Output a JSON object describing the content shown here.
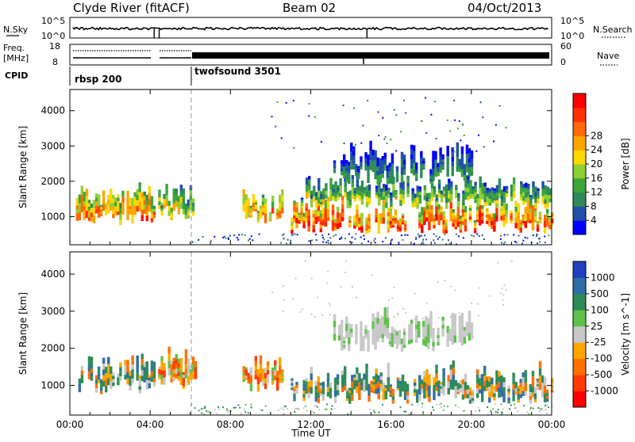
{
  "header": {
    "station": "Clyde River (fitACF)",
    "beam": "Beam 02",
    "date": "04/Oct/2013"
  },
  "strips": {
    "nsky_label": "N.Sky",
    "nsky_ticks": [
      "10^5",
      "10^0"
    ],
    "nsearch_label": "N.Search",
    "nsearch_ticks": [
      "10^5",
      "10^0"
    ],
    "freq_label_1": "Freq.",
    "freq_label_2": "[MHz]",
    "freq_ticks": [
      "18",
      "8"
    ],
    "nave_label": "Nave",
    "nave_ticks": [
      "60",
      "0"
    ],
    "cpid_label": "CPID",
    "cpid_segments": [
      {
        "name": "rbsp 200",
        "start_hour": 0
      },
      {
        "name": "twofsound 3501",
        "start_hour": 6
      }
    ]
  },
  "chart_data": [
    {
      "type": "heatmap",
      "title": "",
      "xlabel": "Time UT",
      "ylabel": "Slant Range [km]",
      "x_range_hours": [
        0,
        24
      ],
      "x_tick_labels": [
        "00:00",
        "04:00",
        "08:00",
        "12:00",
        "16:00",
        "20:00",
        "00:00"
      ],
      "y_range_km": [
        200,
        4600
      ],
      "y_tick_labels": [
        "1000",
        "2000",
        "3000",
        "4000"
      ],
      "colorbar": {
        "label": "Power [dB]",
        "ticks": [
          "4",
          "8",
          "12",
          "16",
          "20",
          "24",
          "28"
        ],
        "colors": [
          "#0000ff",
          "#1f4fa8",
          "#2e8b57",
          "#3aa63a",
          "#8ecf35",
          "#ffd700",
          "#ffa500",
          "#ff6a00",
          "#ff3000",
          "#ff0000"
        ]
      },
      "echo_regions": [
        {
          "t0": 0.3,
          "t1": 4.2,
          "r0": 750,
          "r1": 1800,
          "level": 0.85
        },
        {
          "t0": 4.4,
          "t1": 6.3,
          "r0": 900,
          "r1": 1900,
          "level": 0.65
        },
        {
          "t0": 8.6,
          "t1": 10.6,
          "r0": 800,
          "r1": 1700,
          "level": 0.8
        },
        {
          "t0": 11.0,
          "t1": 24.0,
          "r0": 500,
          "r1": 1500,
          "level": 0.95
        },
        {
          "t0": 11.5,
          "t1": 24.0,
          "r0": 1200,
          "r1": 2100,
          "level": 0.55
        },
        {
          "t0": 13.0,
          "t1": 20.0,
          "r0": 1900,
          "r1": 3000,
          "level": 0.35
        }
      ]
    },
    {
      "type": "heatmap",
      "title": "",
      "xlabel": "Time UT",
      "ylabel": "Slant Range [km]",
      "x_range_hours": [
        0,
        24
      ],
      "x_tick_labels": [
        "00:00",
        "04:00",
        "08:00",
        "12:00",
        "16:00",
        "20:00",
        "00:00"
      ],
      "y_range_km": [
        200,
        4600
      ],
      "y_tick_labels": [
        "1000",
        "2000",
        "3000",
        "4000"
      ],
      "colorbar": {
        "label": "Velocity [m s^-1]",
        "ticks": [
          "1000",
          "500",
          "100",
          "25",
          "-25",
          "-100",
          "-500",
          "-1000"
        ],
        "colors": [
          "#1f3fbf",
          "#2e6ea8",
          "#2e8b57",
          "#5ec24a",
          "#c8c8c8",
          "#ffa500",
          "#ff7000",
          "#ff3a00",
          "#ff0000"
        ]
      },
      "echo_regions": [
        {
          "t0": 0.3,
          "t1": 4.2,
          "r0": 750,
          "r1": 1800,
          "velocity": "mixed"
        },
        {
          "t0": 4.4,
          "t1": 6.3,
          "r0": 900,
          "r1": 1900,
          "velocity": "negative"
        },
        {
          "t0": 8.6,
          "t1": 10.6,
          "r0": 800,
          "r1": 1700,
          "velocity": "negative"
        },
        {
          "t0": 11.0,
          "t1": 24.0,
          "r0": 500,
          "r1": 1500,
          "velocity": "mixed"
        },
        {
          "t0": 13.0,
          "t1": 20.0,
          "r0": 1900,
          "r1": 3000,
          "velocity": "near-zero"
        }
      ]
    }
  ]
}
